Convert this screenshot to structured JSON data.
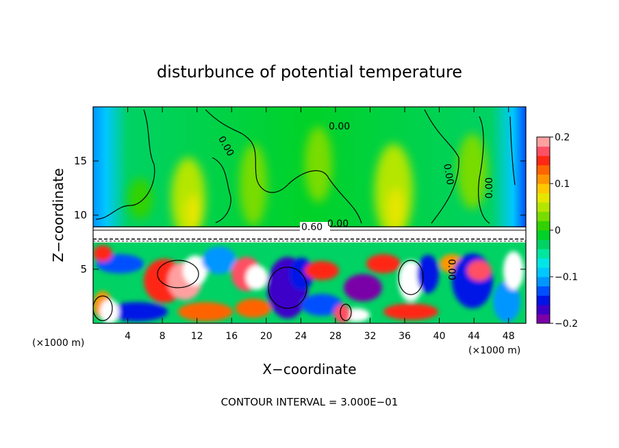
{
  "chart_data": {
    "type": "heatmap",
    "title": "disturbunce of potential temperature",
    "xlabel": "X−coordinate",
    "ylabel": "Z−coordinate",
    "x_unit_left": "(×1000 m)",
    "x_unit_right": "(×1000 m)",
    "x_ticks": [
      "4",
      "8",
      "12",
      "16",
      "20",
      "24",
      "28",
      "32",
      "36",
      "40",
      "44",
      "48"
    ],
    "y_ticks": [
      "5",
      "10",
      "15"
    ],
    "xlim": [
      0,
      50
    ],
    "ylim": [
      0,
      20
    ],
    "colorbar": {
      "ticks": [
        "0.2",
        "0.1",
        "0",
        "−0.1",
        "−0.2"
      ],
      "range": [
        -0.2,
        0.2
      ],
      "colors": [
        "#7a00a8",
        "#3c00c8",
        "#0014e6",
        "#0050ff",
        "#0096ff",
        "#00c8ff",
        "#00e6e6",
        "#00e6a0",
        "#00d264",
        "#00d228",
        "#32d200",
        "#78dc00",
        "#b4e600",
        "#e6e600",
        "#ffc800",
        "#ff9600",
        "#ff6400",
        "#ff2814",
        "#ff5064",
        "#ffa0a0"
      ]
    },
    "contour_labels": [
      "0.00",
      "0.00",
      "0.00",
      "0.00",
      "0.00",
      "0.00",
      "0.60"
    ],
    "footer": "CONTOUR INTERVAL =  3.000E−01"
  }
}
